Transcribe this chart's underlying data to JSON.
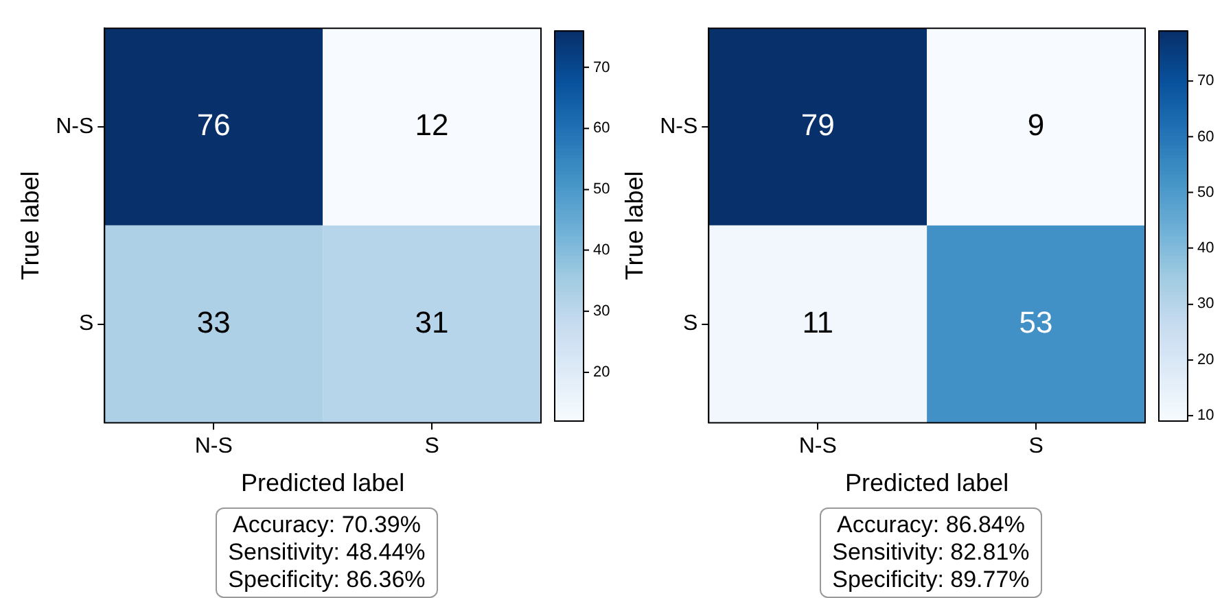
{
  "chart_data": [
    {
      "type": "heatmap",
      "categories": [
        "N-S",
        "S"
      ],
      "y_categories": [
        "N-S",
        "S"
      ],
      "cells": [
        [
          76,
          12
        ],
        [
          33,
          31
        ]
      ],
      "data_labels": true,
      "xlabel": "Predicted label",
      "ylabel": "True label",
      "clim": [
        12,
        76
      ],
      "cticks": [
        20,
        30,
        40,
        50,
        60,
        70
      ],
      "annotations": [
        "Accuracy: 70.39%",
        "Sensitivity: 48.44%",
        "Specificity: 86.36%"
      ]
    },
    {
      "type": "heatmap",
      "categories": [
        "N-S",
        "S"
      ],
      "y_categories": [
        "N-S",
        "S"
      ],
      "cells": [
        [
          79,
          9
        ],
        [
          11,
          53
        ]
      ],
      "data_labels": true,
      "xlabel": "Predicted label",
      "ylabel": "True label",
      "clim": [
        9,
        79
      ],
      "cticks": [
        10,
        20,
        30,
        40,
        50,
        60,
        70
      ],
      "annotations": [
        "Accuracy: 86.84%",
        "Sensitivity: 82.81%",
        "Specificity: 89.77%"
      ]
    }
  ]
}
